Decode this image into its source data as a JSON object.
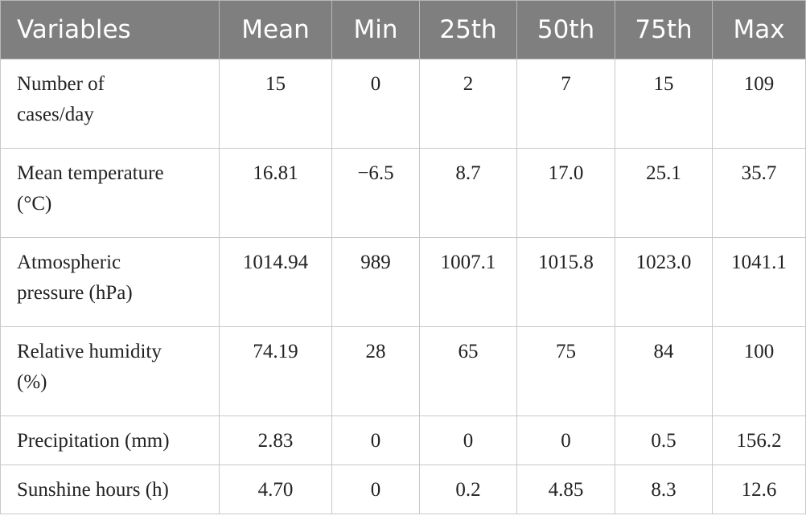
{
  "header": {
    "columns": [
      "Variables",
      "Mean",
      "Min",
      "25th",
      "50th",
      "75th",
      "Max"
    ]
  },
  "table": {
    "rows": [
      [
        "Number of cases/day",
        "15",
        "0",
        "2",
        "7",
        "15",
        "109"
      ],
      [
        "Mean temperature (°C)",
        "16.81",
        "−6.5",
        "8.7",
        "17.0",
        "25.1",
        "35.7"
      ],
      [
        "Atmospheric pressure (hPa)",
        "1014.94",
        "989",
        "1007.1",
        "1015.8",
        "1023.0",
        "1041.1"
      ],
      [
        "Relative humidity (%)",
        "74.19",
        "28",
        "65",
        "75",
        "84",
        "100"
      ],
      [
        "Precipitation (mm)",
        "2.83",
        "0",
        "0",
        "0",
        "0.5",
        "156.2"
      ],
      [
        "Sunshine hours (h)",
        "4.70",
        "0",
        "0.2",
        "4.85",
        "8.3",
        "12.6"
      ]
    ]
  }
}
